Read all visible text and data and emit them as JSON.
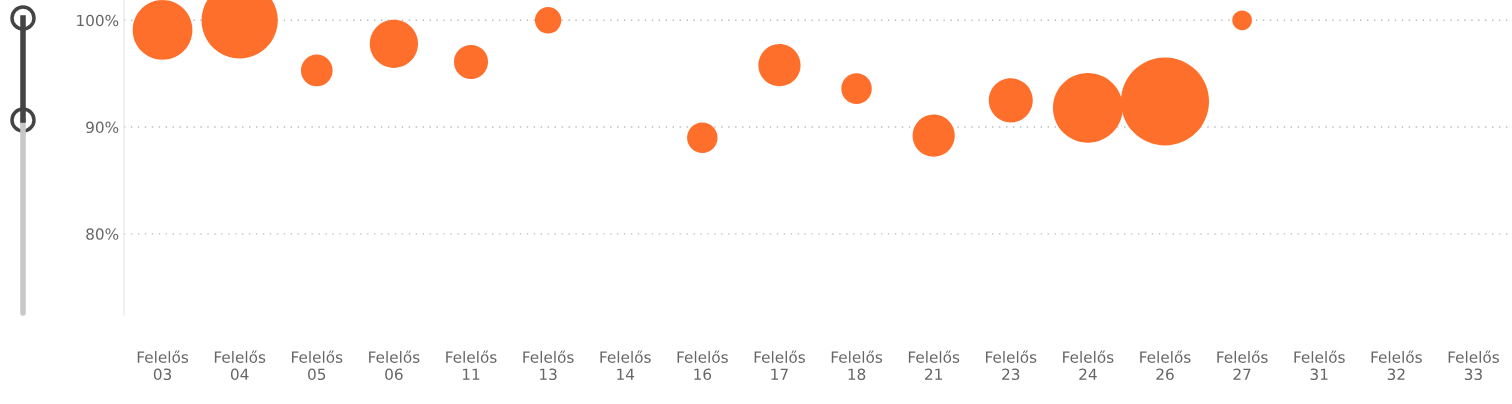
{
  "chart_data": {
    "type": "bubble",
    "categories": [
      "Felelős\n03",
      "Felelős\n04",
      "Felelős\n05",
      "Felelős\n06",
      "Felelős\n11",
      "Felelős\n13",
      "Felelős\n14",
      "Felelős\n16",
      "Felelős\n17",
      "Felelős\n18",
      "Felelős\n21",
      "Felelős\n23",
      "Felelős\n24",
      "Felelős\n26",
      "Felelős\n27",
      "Felelős\n31",
      "Felelős\n32",
      "Felelős\n33"
    ],
    "series": [
      {
        "color": "#ff6f2c",
        "values": [
          99.1,
          100,
          95.3,
          97.8,
          96.1,
          100,
          null,
          89.0,
          95.8,
          93.6,
          89.2,
          92.5,
          91.8,
          92.4,
          100,
          null,
          null,
          null
        ],
        "sizes": [
          0.46,
          0.75,
          0.13,
          0.3,
          0.15,
          0.09,
          null,
          0.12,
          0.23,
          0.12,
          0.23,
          0.25,
          0.63,
          1,
          0.05,
          null,
          null,
          null
        ]
      }
    ],
    "ylim": [
      72.4,
      101.9
    ],
    "yticks": [
      {
        "value": 80,
        "label": "80%"
      },
      {
        "value": 90,
        "label": "90%"
      },
      {
        "value": 100,
        "label": "100%"
      }
    ],
    "grid": "y"
  }
}
